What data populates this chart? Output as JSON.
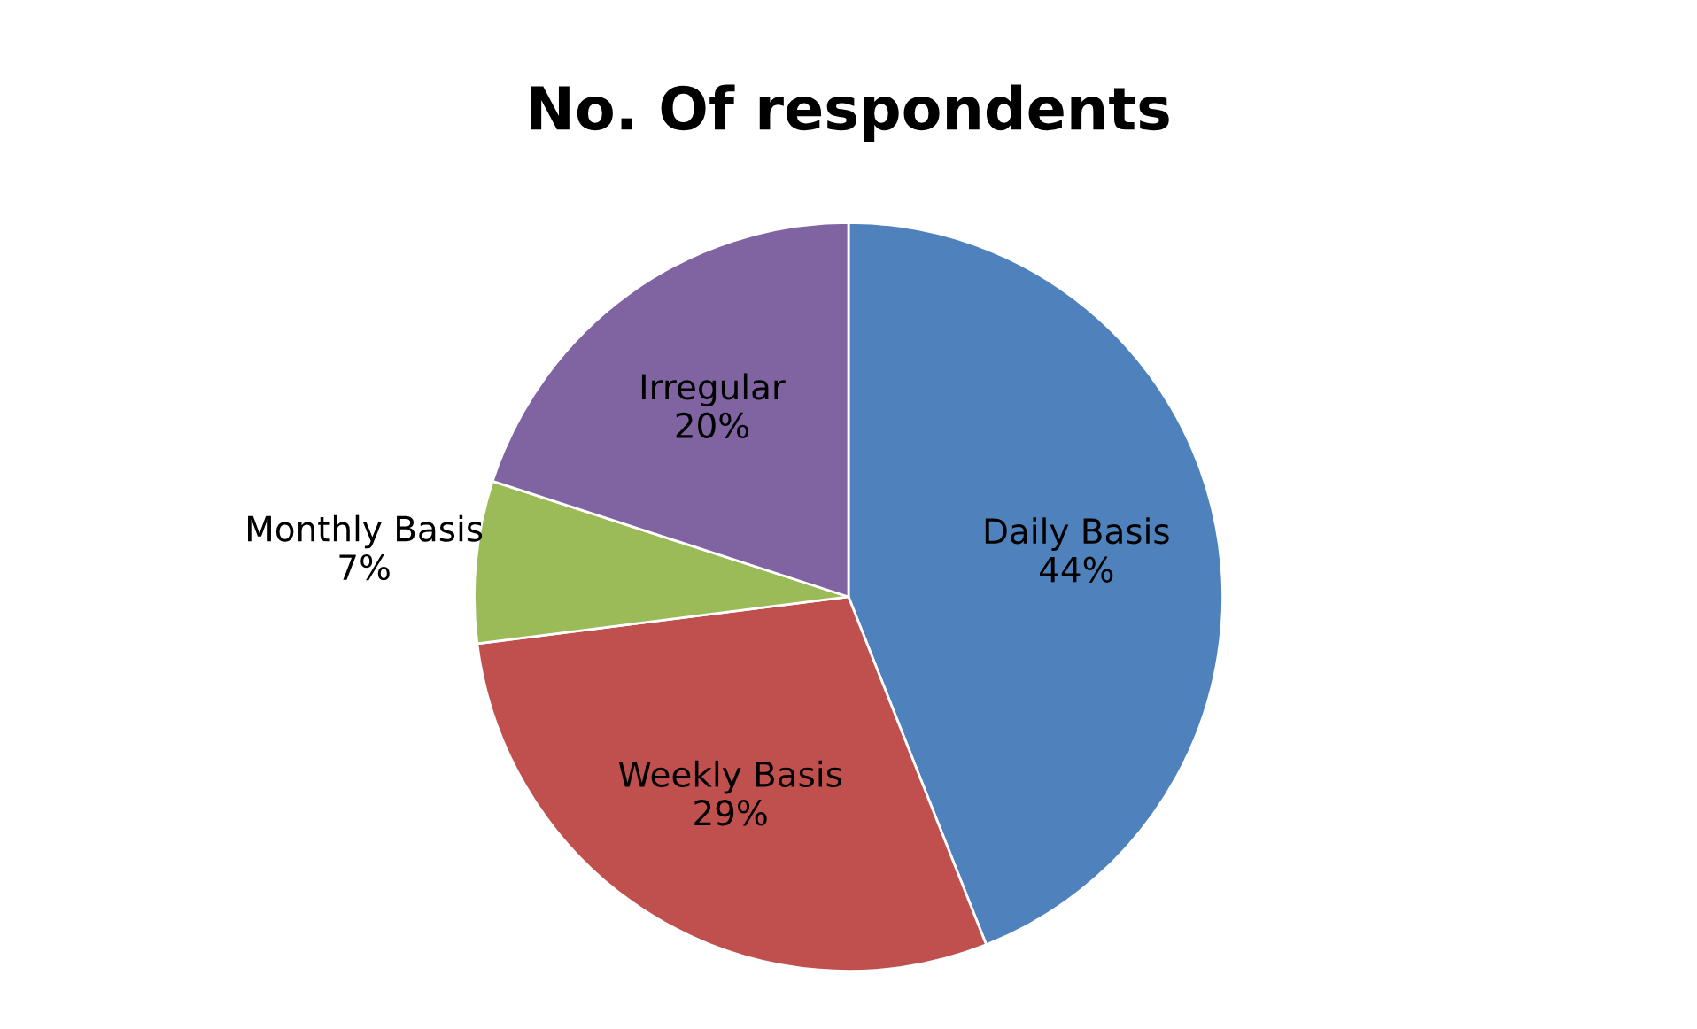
{
  "chart_data": {
    "type": "pie",
    "title": "No. Of respondents",
    "categories": [
      "Daily Basis",
      "Weekly Basis",
      "Monthly Basis",
      "Irregular"
    ],
    "values": [
      44,
      29,
      7,
      20
    ],
    "value_labels": [
      "44%",
      "29%",
      "7%",
      "20%"
    ],
    "colors": [
      "#4f81bd",
      "#c0504d",
      "#9bbb59",
      "#8064a2"
    ],
    "legend": false
  }
}
